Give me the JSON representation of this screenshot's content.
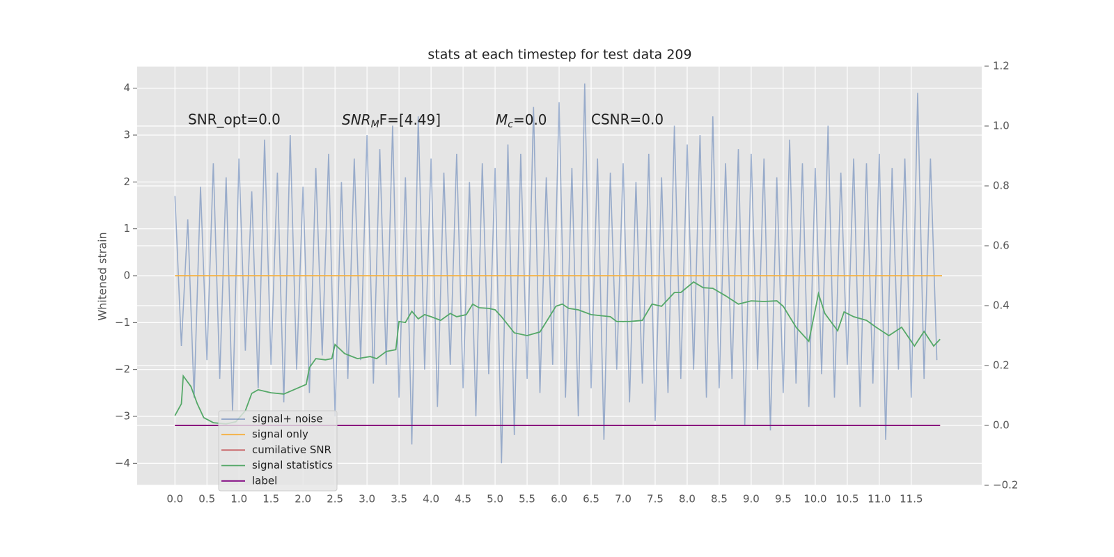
{
  "chart_data": {
    "type": "line",
    "title": "stats at each timestep for test data 209",
    "ylabel": "Whitened strain",
    "annotations": [
      {
        "text": "SNR_opt=0.0"
      },
      {
        "base": "SNR",
        "sub": "M",
        "rest": "F=[4.49]"
      },
      {
        "base": "M",
        "sub": "c",
        "rest": "=0.0"
      },
      {
        "text": "CSNR=0.0"
      }
    ],
    "xlim": [
      -0.59,
      12.6
    ],
    "xticks": [
      {
        "value": 0,
        "label": "0.0"
      },
      0.5,
      {
        "value": 1,
        "label": "1.0"
      },
      1.5,
      {
        "value": 2,
        "label": "2.0"
      },
      2.5,
      {
        "value": 3,
        "label": "3.0"
      },
      3.5,
      {
        "value": 4,
        "label": "4.0"
      },
      4.5,
      {
        "value": 5,
        "label": "5.0"
      },
      5.5,
      {
        "value": 6,
        "label": "6.0"
      },
      6.5,
      {
        "value": 7,
        "label": "7.0"
      },
      7.5,
      {
        "value": 8,
        "label": "8.0"
      },
      8.5,
      {
        "value": 9,
        "label": "9.0"
      },
      9.5,
      {
        "value": 10,
        "label": "10.0"
      },
      10.5,
      {
        "value": 11,
        "label": "11.0"
      },
      11.5
    ],
    "ylim": [
      -4.47,
      4.47
    ],
    "yticks": [
      {
        "value": -4,
        "label": "−4"
      },
      {
        "value": -3,
        "label": "−3"
      },
      {
        "value": -2,
        "label": "−2"
      },
      {
        "value": -1,
        "label": "−1"
      },
      0,
      1,
      2,
      3,
      4
    ],
    "y2lim": [
      -0.2,
      1.2
    ],
    "y2ticks": [
      {
        "value": -0.2,
        "label": "−0.2"
      },
      {
        "value": 0,
        "label": "0.0"
      },
      0.2,
      0.4,
      0.6,
      0.8,
      {
        "value": 1,
        "label": "1.0"
      },
      1.2
    ],
    "grid": true,
    "series": [
      {
        "name": "signal+ noise",
        "color": "#4c72b0",
        "x": [
          0,
          0.1,
          0.2,
          0.3,
          0.4,
          0.5,
          0.6,
          0.7,
          0.8,
          0.9,
          1,
          1.1,
          1.2,
          1.3,
          1.4,
          1.5,
          1.6,
          1.7,
          1.8,
          1.9,
          2,
          2.1,
          2.2,
          2.3,
          2.4,
          2.5,
          2.6,
          2.7,
          2.8,
          2.9,
          3,
          3.1,
          3.2,
          3.3,
          3.4,
          3.5,
          3.6,
          3.7,
          3.8,
          3.9,
          4,
          4.1,
          4.2,
          4.3,
          4.4,
          4.5,
          4.6,
          4.7,
          4.8,
          4.9,
          5,
          5.1,
          5.2,
          5.3,
          5.4,
          5.5,
          5.6,
          5.7,
          5.8,
          5.9,
          6,
          6.1,
          6.2,
          6.3,
          6.4,
          6.5,
          6.6,
          6.7,
          6.8,
          6.9,
          7,
          7.1,
          7.2,
          7.3,
          7.4,
          7.5,
          7.6,
          7.7,
          7.8,
          7.9,
          8,
          8.1,
          8.2,
          8.3,
          8.4,
          8.5,
          8.6,
          8.7,
          8.8,
          8.9,
          9,
          9.1,
          9.2,
          9.3,
          9.4,
          9.5,
          9.6,
          9.7,
          9.8,
          9.9,
          10,
          10.1,
          10.2,
          10.3,
          10.4,
          10.5,
          10.6,
          10.7,
          10.8,
          10.9,
          11,
          11.1,
          11.2,
          11.3,
          11.4,
          11.5,
          11.6,
          11.7,
          11.8,
          11.9
        ],
        "values": [
          1.7,
          -1.5,
          1.2,
          -2.6,
          1.9,
          -1.8,
          2.4,
          -2.2,
          2.1,
          -2.9,
          2.5,
          -1.6,
          1.8,
          -2.4,
          2.9,
          -1.9,
          2.2,
          -2.7,
          3.0,
          -2.0,
          1.9,
          -2.5,
          2.3,
          -1.7,
          2.6,
          -3.0,
          2.0,
          -2.2,
          2.5,
          -1.8,
          3.0,
          -2.3,
          2.7,
          -1.9,
          3.2,
          -2.6,
          2.1,
          -3.6,
          3.4,
          -2.0,
          2.5,
          -2.8,
          2.2,
          -1.9,
          2.6,
          -2.4,
          2.0,
          -3.0,
          2.4,
          -2.1,
          2.3,
          -4.0,
          2.8,
          -3.4,
          2.6,
          -2.2,
          3.6,
          -2.5,
          2.1,
          -1.9,
          3.7,
          -2.6,
          2.3,
          -3.0,
          4.1,
          -2.4,
          2.5,
          -3.5,
          2.2,
          -2.0,
          2.4,
          -2.7,
          2.0,
          -2.3,
          2.6,
          -3.1,
          2.1,
          -2.5,
          3.2,
          -2.2,
          2.8,
          -2.0,
          3.0,
          -2.6,
          3.4,
          -2.4,
          2.4,
          -2.2,
          2.7,
          -3.2,
          2.6,
          -2.0,
          2.5,
          -3.3,
          2.1,
          -2.5,
          2.9,
          -2.3,
          2.4,
          -2.8,
          2.3,
          -2.1,
          3.2,
          -2.6,
          2.2,
          -1.9,
          2.5,
          -2.8,
          2.4,
          -2.3,
          2.6,
          -3.5,
          2.3,
          -2.0,
          2.5,
          -2.6,
          3.9,
          -2.2,
          2.5,
          -1.8
        ]
      },
      {
        "name": "signal only",
        "color": "#f5b041",
        "x": [
          0,
          11.98
        ],
        "values": [
          0,
          0
        ]
      },
      {
        "name": "cumilative SNR",
        "color": "#c44e52",
        "axis": "y2",
        "x": [
          0,
          11.95
        ],
        "values": [
          0,
          0
        ]
      },
      {
        "name": "signal statistics",
        "color": "#55a868",
        "axis": "y2",
        "x": [
          0,
          0.1,
          0.13,
          0.25,
          0.35,
          0.45,
          0.6,
          0.8,
          0.95,
          1.1,
          1.2,
          1.3,
          1.5,
          1.7,
          1.9,
          2.05,
          2.1,
          2.2,
          2.35,
          2.45,
          2.5,
          2.65,
          2.85,
          3.05,
          3.15,
          3.3,
          3.45,
          3.5,
          3.6,
          3.7,
          3.8,
          3.9,
          4,
          4.15,
          4.3,
          4.4,
          4.55,
          4.65,
          4.75,
          4.9,
          5,
          5.1,
          5.3,
          5.5,
          5.7,
          5.85,
          5.95,
          6.05,
          6.15,
          6.3,
          6.5,
          6.8,
          6.9,
          7.1,
          7.3,
          7.45,
          7.6,
          7.8,
          7.9,
          8.1,
          8.25,
          8.4,
          8.6,
          8.8,
          9,
          9.2,
          9.4,
          9.5,
          9.7,
          9.9,
          10,
          10.05,
          10.15,
          10.35,
          10.45,
          10.6,
          10.8,
          10.95,
          11.15,
          11.35,
          11.55,
          11.7,
          11.85,
          11.95
        ],
        "values": [
          0.033,
          0.072,
          0.165,
          0.13,
          0.072,
          0.026,
          0.009,
          0.005,
          0.012,
          0.049,
          0.107,
          0.119,
          0.109,
          0.105,
          0.123,
          0.137,
          0.193,
          0.223,
          0.219,
          0.223,
          0.27,
          0.24,
          0.223,
          0.23,
          0.223,
          0.247,
          0.253,
          0.347,
          0.344,
          0.381,
          0.356,
          0.37,
          0.363,
          0.351,
          0.374,
          0.363,
          0.37,
          0.405,
          0.393,
          0.391,
          0.386,
          0.363,
          0.309,
          0.3,
          0.312,
          0.363,
          0.398,
          0.405,
          0.391,
          0.386,
          0.37,
          0.363,
          0.347,
          0.347,
          0.351,
          0.405,
          0.398,
          0.444,
          0.444,
          0.479,
          0.46,
          0.458,
          0.433,
          0.405,
          0.416,
          0.414,
          0.416,
          0.398,
          0.328,
          0.281,
          0.386,
          0.44,
          0.374,
          0.316,
          0.379,
          0.363,
          0.351,
          0.328,
          0.3,
          0.328,
          0.265,
          0.314,
          0.265,
          0.288
        ]
      },
      {
        "name": "label",
        "color": "#800080",
        "axis": "y2",
        "x": [
          0,
          11.95
        ],
        "values": [
          0,
          0
        ]
      }
    ]
  }
}
